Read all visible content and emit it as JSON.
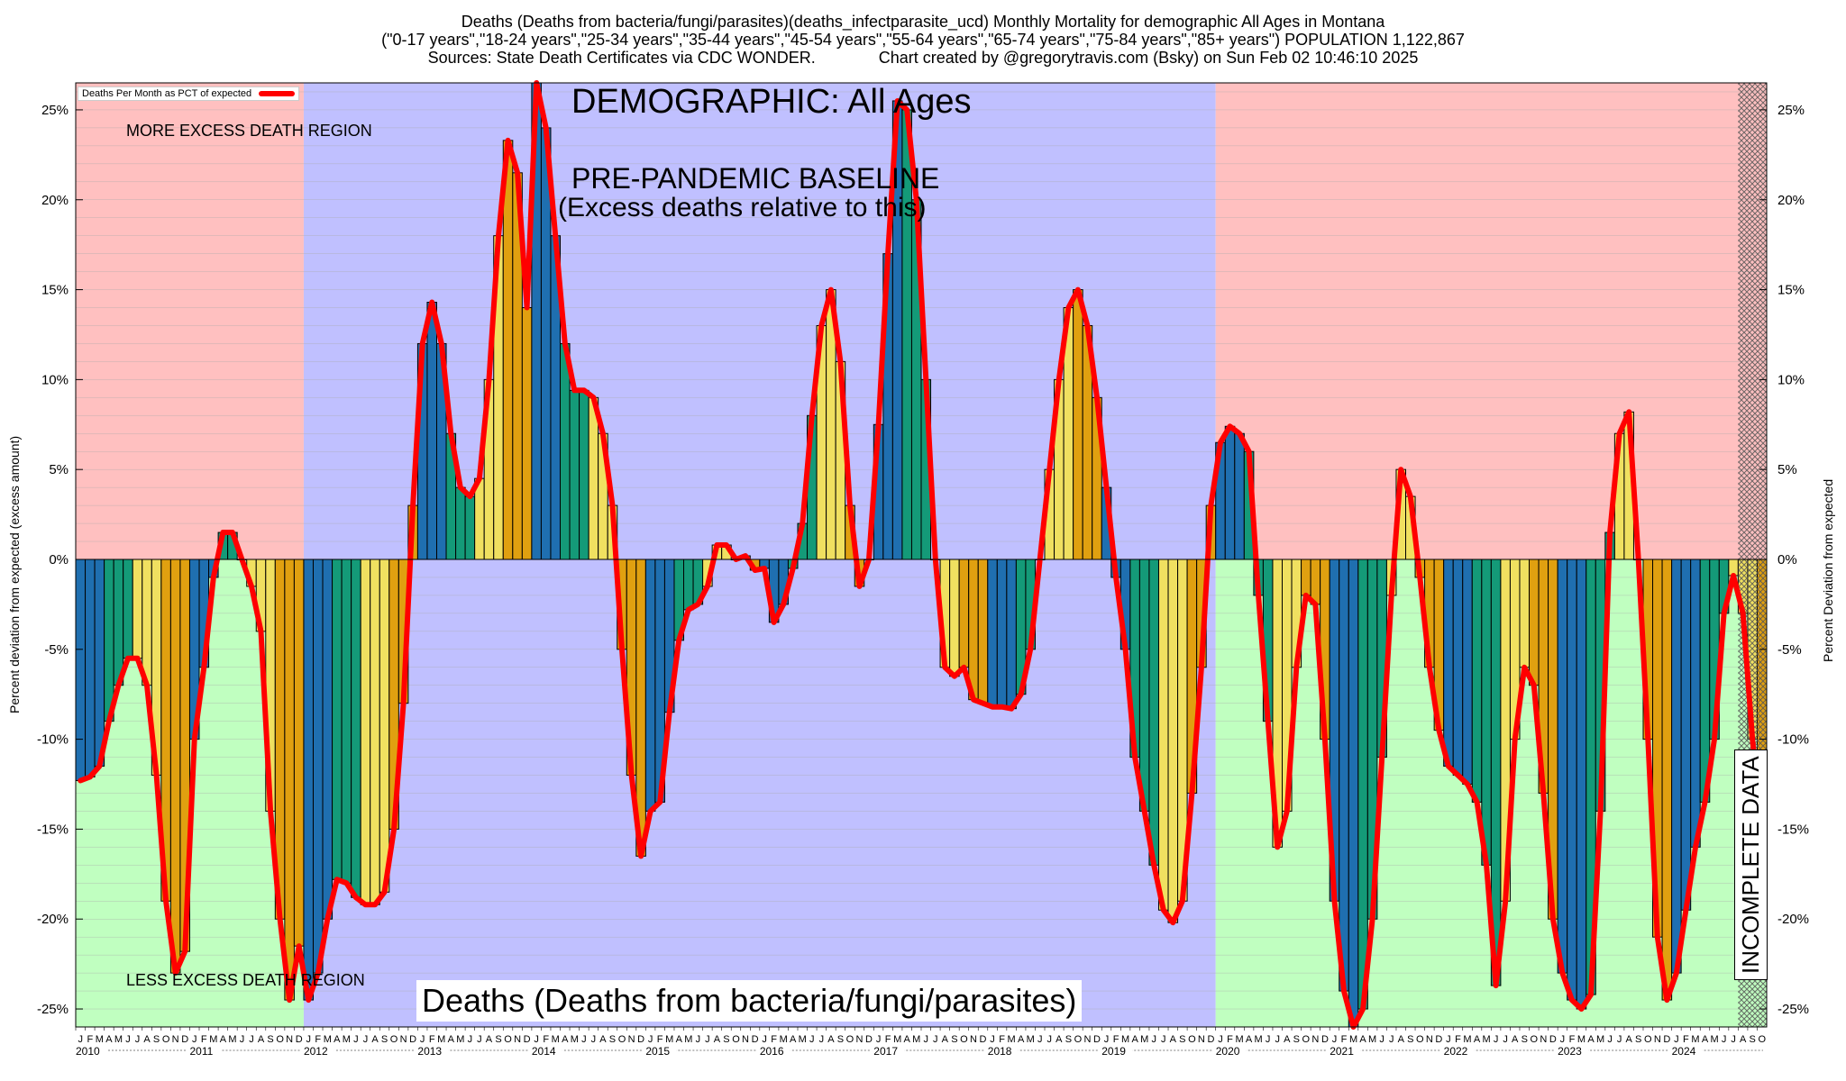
{
  "header": {
    "line1": "Deaths (Deaths from bacteria/fungi/parasites)(deaths_infectparasite_ucd) Monthly Mortality for demographic All Ages in Montana",
    "line2": "(\"0-17 years\",\"18-24 years\",\"25-34 years\",\"35-44 years\",\"45-54 years\",\"55-64 years\",\"65-74 years\",\"75-84 years\",\"85+ years\") POPULATION 1,122,867",
    "line3": "Sources: State Death Certificates via CDC WONDER.              Chart created by @gregorytravis.com (Bsky) on Sun Feb 02 10:46:10 2025"
  },
  "labels": {
    "demographic": "DEMOGRAPHIC: All Ages",
    "baseline1": "PRE-PANDEMIC BASELINE",
    "baseline2": "(Excess deaths relative to this)",
    "more_region": "MORE EXCESS DEATH REGION",
    "less_region": "LESS EXCESS DEATH REGION",
    "bottom_title": "Deaths (Deaths from bacteria/fungi/parasites)",
    "incomplete": "INCOMPLETE DATA",
    "left_axis": "Percent deviation from expected (excess amount)",
    "right_axis": "Percent Deviation from expected",
    "legend": "Deaths Per Month as PCT of expected"
  },
  "colors": {
    "more_region": "#ffc0c0",
    "less_region": "#c0ffc0",
    "baseline_region": "#c0c0ff",
    "line": "#ff0000",
    "bar_palette": [
      "#1f6fb0",
      "#149a78",
      "#f0e060",
      "#e0a010"
    ]
  },
  "chart_data": {
    "type": "bar",
    "title": "Deaths (Deaths from bacteria/fungi/parasites)(deaths_infectparasite_ucd) Monthly Mortality for demographic All Ages in Montana",
    "ylabel": "Percent deviation from expected (excess amount)",
    "ylabel_right": "Percent Deviation from expected",
    "ylim": [
      -26,
      26.5
    ],
    "yticks": [
      -25,
      -20,
      -15,
      -10,
      -5,
      0,
      5,
      10,
      15,
      20,
      25
    ],
    "ytick_labels": [
      "-25%",
      "-20%",
      "-15%",
      "-10%",
      "-5%",
      "0%",
      "5%",
      "10%",
      "15%",
      "20%",
      "25%"
    ],
    "grid": true,
    "legend_position": "top-left",
    "start": "2010-01",
    "month_letters": [
      "J",
      "F",
      "M",
      "A",
      "M",
      "J",
      "J",
      "A",
      "S",
      "O",
      "N",
      "D"
    ],
    "years": [
      "2010",
      "2011",
      "2012",
      "2013",
      "2014",
      "2015",
      "2016",
      "2017",
      "2018",
      "2019",
      "2020",
      "2021",
      "2022",
      "2023",
      "2024"
    ],
    "baseline_period": [
      "2012-01",
      "2019-12"
    ],
    "incomplete_from": "2024-08",
    "series": [
      {
        "name": "Deaths Per Month as PCT of expected",
        "values": [
          -12.3,
          -12.1,
          -11.5,
          -9,
          -7,
          -5.5,
          -5.5,
          -7,
          -12,
          -19,
          -23,
          -21.8,
          -10,
          -6,
          -1,
          1.5,
          1.5,
          0,
          -1.5,
          -4,
          -14,
          -20,
          -24.5,
          -21.5,
          -24.5,
          -23,
          -20,
          -17.8,
          -18,
          -18.8,
          -19.2,
          -19.2,
          -18.5,
          -15,
          -8,
          3,
          12,
          14.3,
          12,
          7,
          4,
          3.5,
          4.5,
          10,
          18,
          23.3,
          21.5,
          14,
          26.5,
          24,
          18,
          12,
          9.4,
          9.4,
          9,
          7,
          3,
          -5,
          -12,
          -16.5,
          -14,
          -13.5,
          -8.5,
          -4.5,
          -2.8,
          -2.5,
          -1.5,
          0.8,
          0.8,
          0,
          0.2,
          -0.6,
          -0.5,
          -3.5,
          -2.5,
          -0.5,
          2,
          8,
          13,
          15,
          11,
          3,
          -1.5,
          0,
          7.5,
          17,
          25.5,
          25,
          20,
          10,
          0,
          -6,
          -6.5,
          -6,
          -7.8,
          -8,
          -8.2,
          -8.2,
          -8.3,
          -7.5,
          -5,
          0,
          5,
          10,
          14,
          15,
          13,
          9,
          4,
          -1,
          -5,
          -11,
          -14,
          -17,
          -19.5,
          -20.2,
          -19,
          -13,
          -6,
          3,
          6.5,
          7.4,
          7,
          6,
          -2,
          -9,
          -16,
          -14,
          -6,
          -2,
          -2.5,
          -10,
          -19,
          -24,
          -26,
          -25,
          -20,
          -11,
          -2,
          5,
          3.5,
          -1,
          -6,
          -9.5,
          -11.5,
          -12,
          -12.5,
          -13.5,
          -17,
          -23.7,
          -19,
          -10,
          -6,
          -7,
          -13,
          -20,
          -23,
          -24.5,
          -25,
          -24.2,
          -14,
          1.5,
          7,
          8.2,
          0,
          -10,
          -21,
          -24.5,
          -23,
          -19.5,
          -16,
          -13.5,
          -10,
          -3,
          -0.9,
          -3,
          -10,
          -15
        ]
      }
    ]
  }
}
